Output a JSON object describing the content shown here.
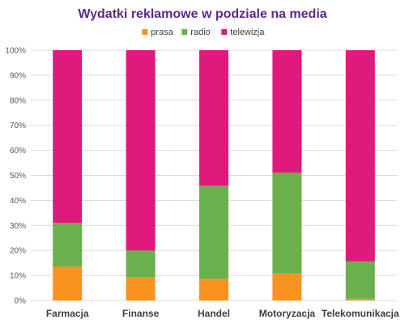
{
  "chart_data": {
    "type": "bar",
    "stacked": "percent",
    "title": "Wydatki reklamowe w podziale na media",
    "categories": [
      "Farmacja",
      "Finanse",
      "Handel",
      "Motoryzacja",
      "Telekomunikacja"
    ],
    "series": [
      {
        "name": "prasa",
        "color": "#F7931E",
        "values": [
          13.5,
          9.3,
          8.7,
          10.8,
          0.7
        ]
      },
      {
        "name": "radio",
        "color": "#6AB04C",
        "values": [
          17.5,
          10.7,
          37.2,
          40.3,
          15.0
        ]
      },
      {
        "name": "telewizja",
        "color": "#E0197D",
        "values": [
          69.0,
          80.0,
          54.1,
          48.9,
          84.3
        ]
      }
    ],
    "ylim": [
      0,
      100
    ],
    "yticks": [
      "0%",
      "10%",
      "20%",
      "30%",
      "40%",
      "50%",
      "60%",
      "70%",
      "80%",
      "90%",
      "100%"
    ],
    "grid": true,
    "legend_position": "top",
    "colors": {
      "title": "#5B2C83",
      "grid": "#D9D9D9"
    }
  }
}
